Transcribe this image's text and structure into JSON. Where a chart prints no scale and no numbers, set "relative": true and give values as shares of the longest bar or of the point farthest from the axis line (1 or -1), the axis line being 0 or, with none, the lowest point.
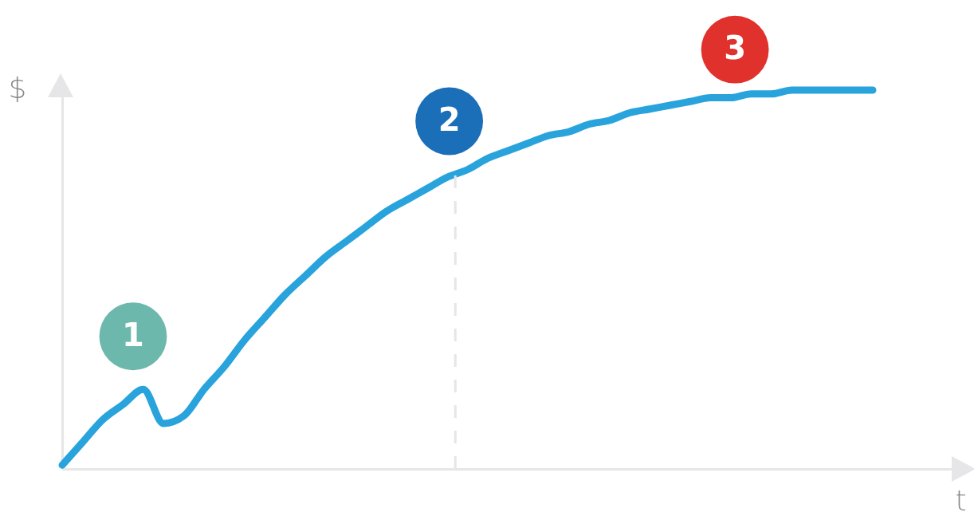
{
  "chart_data": {
    "type": "line",
    "xlabel": "t",
    "ylabel": "$",
    "relative": true,
    "tick_labels": false,
    "grid": false,
    "line_style": "solid",
    "categories": [
      null,
      null,
      null,
      null,
      null,
      null,
      null,
      null,
      null,
      null,
      null,
      null,
      null,
      null,
      null,
      null,
      null,
      null,
      null,
      null,
      null,
      null,
      null,
      null,
      null,
      null,
      null,
      null,
      null,
      null,
      null,
      null,
      null,
      null,
      null,
      null,
      null,
      null,
      null,
      null,
      null
    ],
    "series": [
      {
        "color": "#29a3dc",
        "values": [
          0.01,
          0.07,
          0.13,
          0.17,
          0.21,
          0.12,
          0.14,
          0.21,
          0.27,
          0.34,
          0.4,
          0.46,
          0.51,
          0.56,
          0.6,
          0.64,
          0.68,
          0.71,
          0.74,
          0.77,
          0.79,
          0.82,
          0.84,
          0.86,
          0.88,
          0.89,
          0.91,
          0.92,
          0.94,
          0.95,
          0.96,
          0.97,
          0.98,
          0.98,
          0.99,
          0.99,
          1.0,
          1.0,
          1.0,
          1.0,
          1.0
        ]
      }
    ],
    "annotations": [
      "1",
      "2",
      "3"
    ]
  }
}
